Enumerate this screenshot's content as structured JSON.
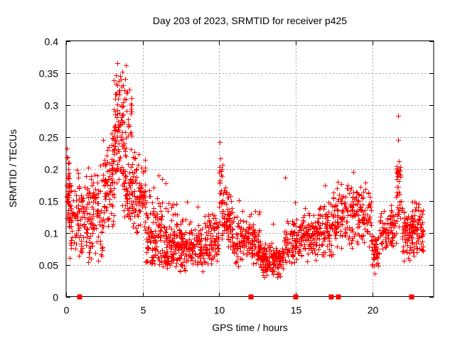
{
  "chart_data": {
    "type": "scatter",
    "title": "Day 203 of 2023, SRMTID for receiver p425",
    "xlabel": "GPS time / hours",
    "ylabel": "SRMTID / TECUs",
    "xlim": [
      0,
      24
    ],
    "ylim": [
      0,
      0.4
    ],
    "x_ticks": {
      "values": [
        0,
        5,
        10,
        15,
        20
      ],
      "labels": [
        "0",
        "5",
        "10",
        "15",
        "20"
      ]
    },
    "y_ticks": {
      "values": [
        0,
        0.05,
        0.1,
        0.15,
        0.2,
        0.25,
        0.3,
        0.35,
        0.4
      ],
      "labels": [
        "0",
        "0.05",
        "0.1",
        "0.15",
        "0.2",
        "0.25",
        "0.3",
        "0.35",
        "0.4"
      ]
    },
    "grid": true,
    "legend": "none",
    "marker_color": "#ff0000",
    "grid_color": "#9c9c9c",
    "seed": 11,
    "cluster_format": "[x_start_hr, x_end_hr, y_min_TECU, y_max_TECU, point_count, shape(0=uniform,1=mid-peaked,2=bottom-heavy,3=top-heavy)]",
    "series": [
      {
        "name": "SRMTID samples",
        "marker": "plus",
        "density_clusters": [
          [
            0.02,
            0.25,
            0.09,
            0.235,
            45,
            1
          ],
          [
            0.25,
            1.2,
            0.055,
            0.205,
            90,
            1
          ],
          [
            1.2,
            2.4,
            0.05,
            0.21,
            120,
            1
          ],
          [
            2.4,
            3.1,
            0.09,
            0.26,
            80,
            1
          ],
          [
            3.1,
            3.75,
            0.14,
            0.365,
            95,
            1
          ],
          [
            3.75,
            4.3,
            0.12,
            0.36,
            85,
            2
          ],
          [
            4.3,
            5.2,
            0.09,
            0.23,
            90,
            1
          ],
          [
            5.2,
            6.3,
            0.05,
            0.18,
            110,
            2
          ],
          [
            6.3,
            7.3,
            0.045,
            0.16,
            110,
            2
          ],
          [
            7.3,
            9.0,
            0.03,
            0.125,
            160,
            1
          ],
          [
            9.0,
            9.95,
            0.04,
            0.135,
            90,
            1
          ],
          [
            9.95,
            10.2,
            0.09,
            0.21,
            30,
            0
          ],
          [
            10.2,
            10.8,
            0.07,
            0.175,
            65,
            1
          ],
          [
            10.8,
            12.3,
            0.045,
            0.135,
            130,
            1
          ],
          [
            12.3,
            12.7,
            0.05,
            0.15,
            40,
            2
          ],
          [
            12.7,
            14.2,
            0.028,
            0.085,
            160,
            1
          ],
          [
            14.2,
            15.4,
            0.045,
            0.125,
            95,
            1
          ],
          [
            15.4,
            16.4,
            0.05,
            0.14,
            90,
            1
          ],
          [
            16.4,
            17.4,
            0.055,
            0.155,
            85,
            1
          ],
          [
            17.4,
            18.6,
            0.065,
            0.185,
            100,
            1
          ],
          [
            18.6,
            19.95,
            0.07,
            0.185,
            110,
            1
          ],
          [
            19.95,
            20.45,
            0.04,
            0.105,
            45,
            1
          ],
          [
            20.45,
            21.55,
            0.065,
            0.15,
            85,
            1
          ],
          [
            21.55,
            21.9,
            0.1,
            0.205,
            40,
            3
          ],
          [
            21.9,
            23.35,
            0.05,
            0.155,
            150,
            1
          ]
        ],
        "outlier_points": [
          [
            0.05,
            0.232
          ],
          [
            0.09,
            0.218
          ],
          [
            0.13,
            0.208
          ],
          [
            2.95,
            0.255
          ],
          [
            3.05,
            0.248
          ],
          [
            3.34,
            0.365
          ],
          [
            3.42,
            0.337
          ],
          [
            3.55,
            0.345
          ],
          [
            3.6,
            0.328
          ],
          [
            3.72,
            0.331
          ],
          [
            3.86,
            0.341
          ],
          [
            3.9,
            0.362
          ],
          [
            3.95,
            0.318
          ],
          [
            4.45,
            0.226
          ],
          [
            4.52,
            0.217
          ],
          [
            6.05,
            0.19
          ],
          [
            6.28,
            0.184
          ],
          [
            6.5,
            0.177
          ],
          [
            7.9,
            0.148
          ],
          [
            8.6,
            0.141
          ],
          [
            10.05,
            0.242
          ],
          [
            10.08,
            0.216
          ],
          [
            10.1,
            0.196
          ],
          [
            11.3,
            0.151
          ],
          [
            13.5,
            0.114
          ],
          [
            14.3,
            0.186
          ],
          [
            14.95,
            0.147
          ],
          [
            16.9,
            0.174
          ],
          [
            18.75,
            0.195
          ],
          [
            20.15,
            0.036
          ],
          [
            21.62,
            0.198
          ],
          [
            21.68,
            0.283
          ],
          [
            21.7,
            0.245
          ],
          [
            21.72,
            0.212
          ],
          [
            21.78,
            0.192
          ]
        ]
      },
      {
        "name": "baseline flags",
        "marker": "filled-square",
        "y": 0,
        "x": [
          0.9,
          12.05,
          15.0,
          17.3,
          17.8,
          22.55
        ]
      }
    ]
  }
}
